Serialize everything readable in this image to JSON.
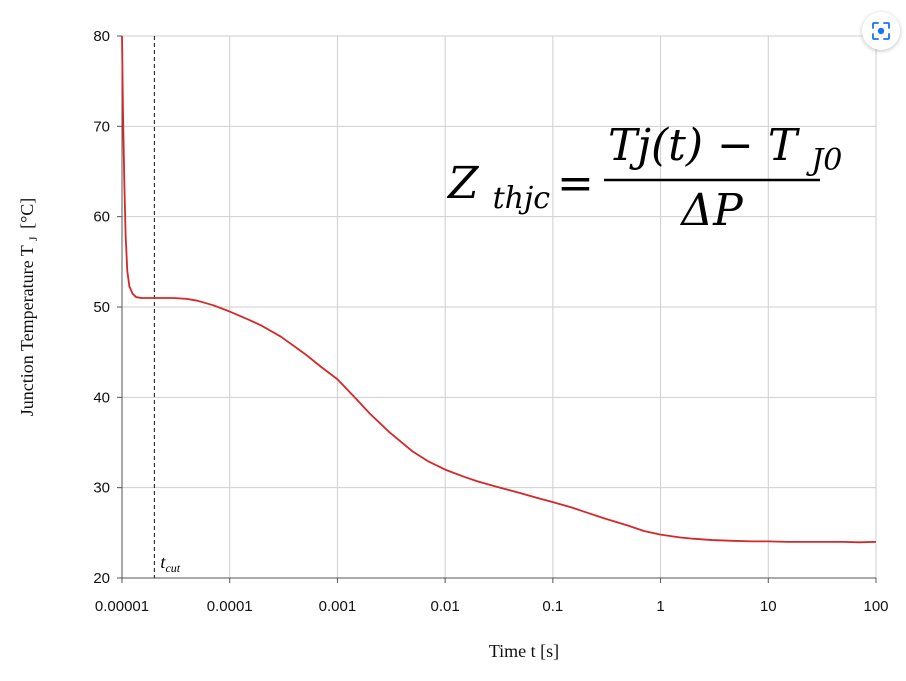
{
  "chart_data": {
    "type": "line",
    "title": "",
    "xlabel": "Time t [s]",
    "ylabel": "Junction Temperature T",
    "ylabel_subscript": "J",
    "ylabel_unit": "[°C]",
    "x_scale": "log",
    "xlim": [
      1e-05,
      100
    ],
    "ylim": [
      20,
      80
    ],
    "grid": true,
    "x_ticks": [
      {
        "value": 1e-05,
        "label": "0.00001"
      },
      {
        "value": 0.0001,
        "label": "0.0001"
      },
      {
        "value": 0.001,
        "label": "0.001"
      },
      {
        "value": 0.01,
        "label": "0.01"
      },
      {
        "value": 0.1,
        "label": "0.1"
      },
      {
        "value": 1,
        "label": "1"
      },
      {
        "value": 10,
        "label": "10"
      },
      {
        "value": 100,
        "label": "100"
      }
    ],
    "y_ticks": [
      {
        "value": 20,
        "label": "20"
      },
      {
        "value": 30,
        "label": "30"
      },
      {
        "value": 40,
        "label": "40"
      },
      {
        "value": 50,
        "label": "50"
      },
      {
        "value": 60,
        "label": "60"
      },
      {
        "value": 70,
        "label": "70"
      },
      {
        "value": 80,
        "label": "80"
      }
    ],
    "series": [
      {
        "color": "#d62728",
        "x": [
          1e-05,
          1.02e-05,
          1.05e-05,
          1.08e-05,
          1.12e-05,
          1.17e-05,
          1.25e-05,
          1.35e-05,
          1.5e-05,
          1.8e-05,
          2.5e-05,
          3e-05,
          4e-05,
          5e-05,
          7e-05,
          0.0001,
          0.00015,
          0.0002,
          0.0003,
          0.0005,
          0.0007,
          0.001,
          0.0015,
          0.002,
          0.003,
          0.005,
          0.007,
          0.01,
          0.015,
          0.02,
          0.03,
          0.05,
          0.07,
          0.1,
          0.15,
          0.2,
          0.3,
          0.5,
          0.7,
          1,
          1.5,
          2,
          3,
          5,
          7,
          10,
          15,
          20,
          30,
          50,
          70,
          100
        ],
        "y": [
          80,
          72,
          64,
          58,
          54,
          52.3,
          51.5,
          51.1,
          51,
          51,
          51,
          51,
          50.9,
          50.7,
          50.2,
          49.5,
          48.6,
          47.9,
          46.7,
          44.8,
          43.4,
          42,
          39.8,
          38.2,
          36.2,
          34,
          32.9,
          32,
          31.2,
          30.7,
          30.1,
          29.4,
          28.9,
          28.4,
          27.8,
          27.3,
          26.6,
          25.8,
          25.2,
          24.8,
          24.5,
          24.35,
          24.2,
          24.1,
          24.05,
          24.05,
          24.0,
          24.0,
          24.0,
          24.0,
          23.95,
          24.0
        ]
      }
    ],
    "annotations": [
      {
        "type": "vline",
        "x": 2e-05,
        "style": "dashed",
        "label": "t",
        "label_subscript": "cut"
      }
    ]
  },
  "equation": {
    "lhs": "Z",
    "lhs_subscript": "thjc",
    "equals": "=",
    "numerator": "Tj(t) − T",
    "numerator_subscript": "J0",
    "denominator": "ΔP"
  },
  "lens_button": {
    "icon": "lens-icon"
  }
}
